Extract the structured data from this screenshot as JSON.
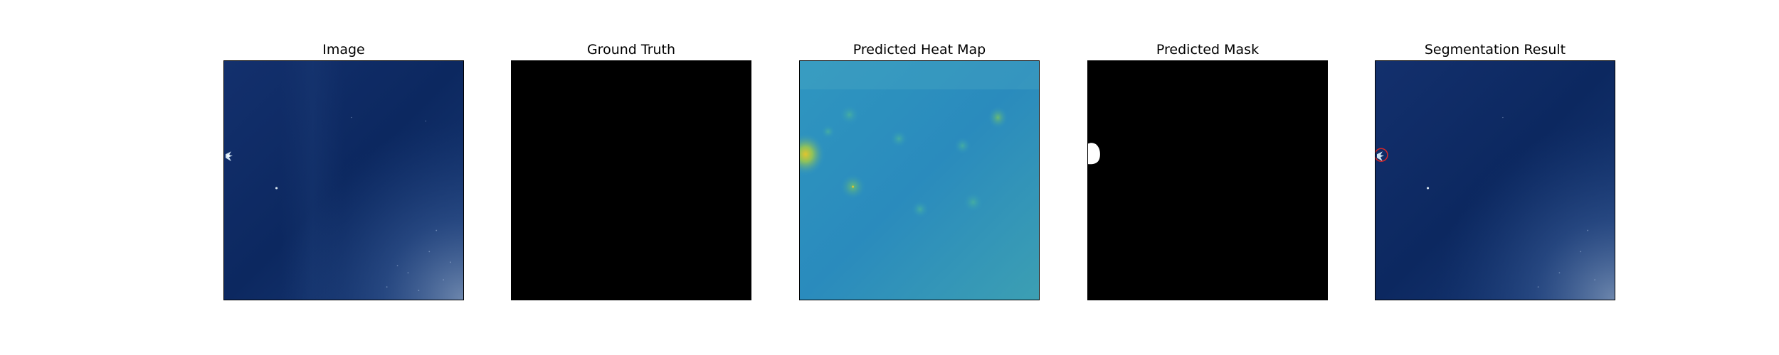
{
  "figure": {
    "panels": [
      {
        "title": "Image"
      },
      {
        "title": "Ground Truth"
      },
      {
        "title": "Predicted Heat Map"
      },
      {
        "title": "Predicted Mask"
      },
      {
        "title": "Segmentation Result"
      }
    ]
  },
  "colors": {
    "image_background": "#0e2a63",
    "ground_truth_fill": "#000000",
    "heatmap_background": "#2c8fbf",
    "mask_background": "#000000",
    "mask_region": "#ffffff",
    "segmentation_outline": "#d62728"
  }
}
